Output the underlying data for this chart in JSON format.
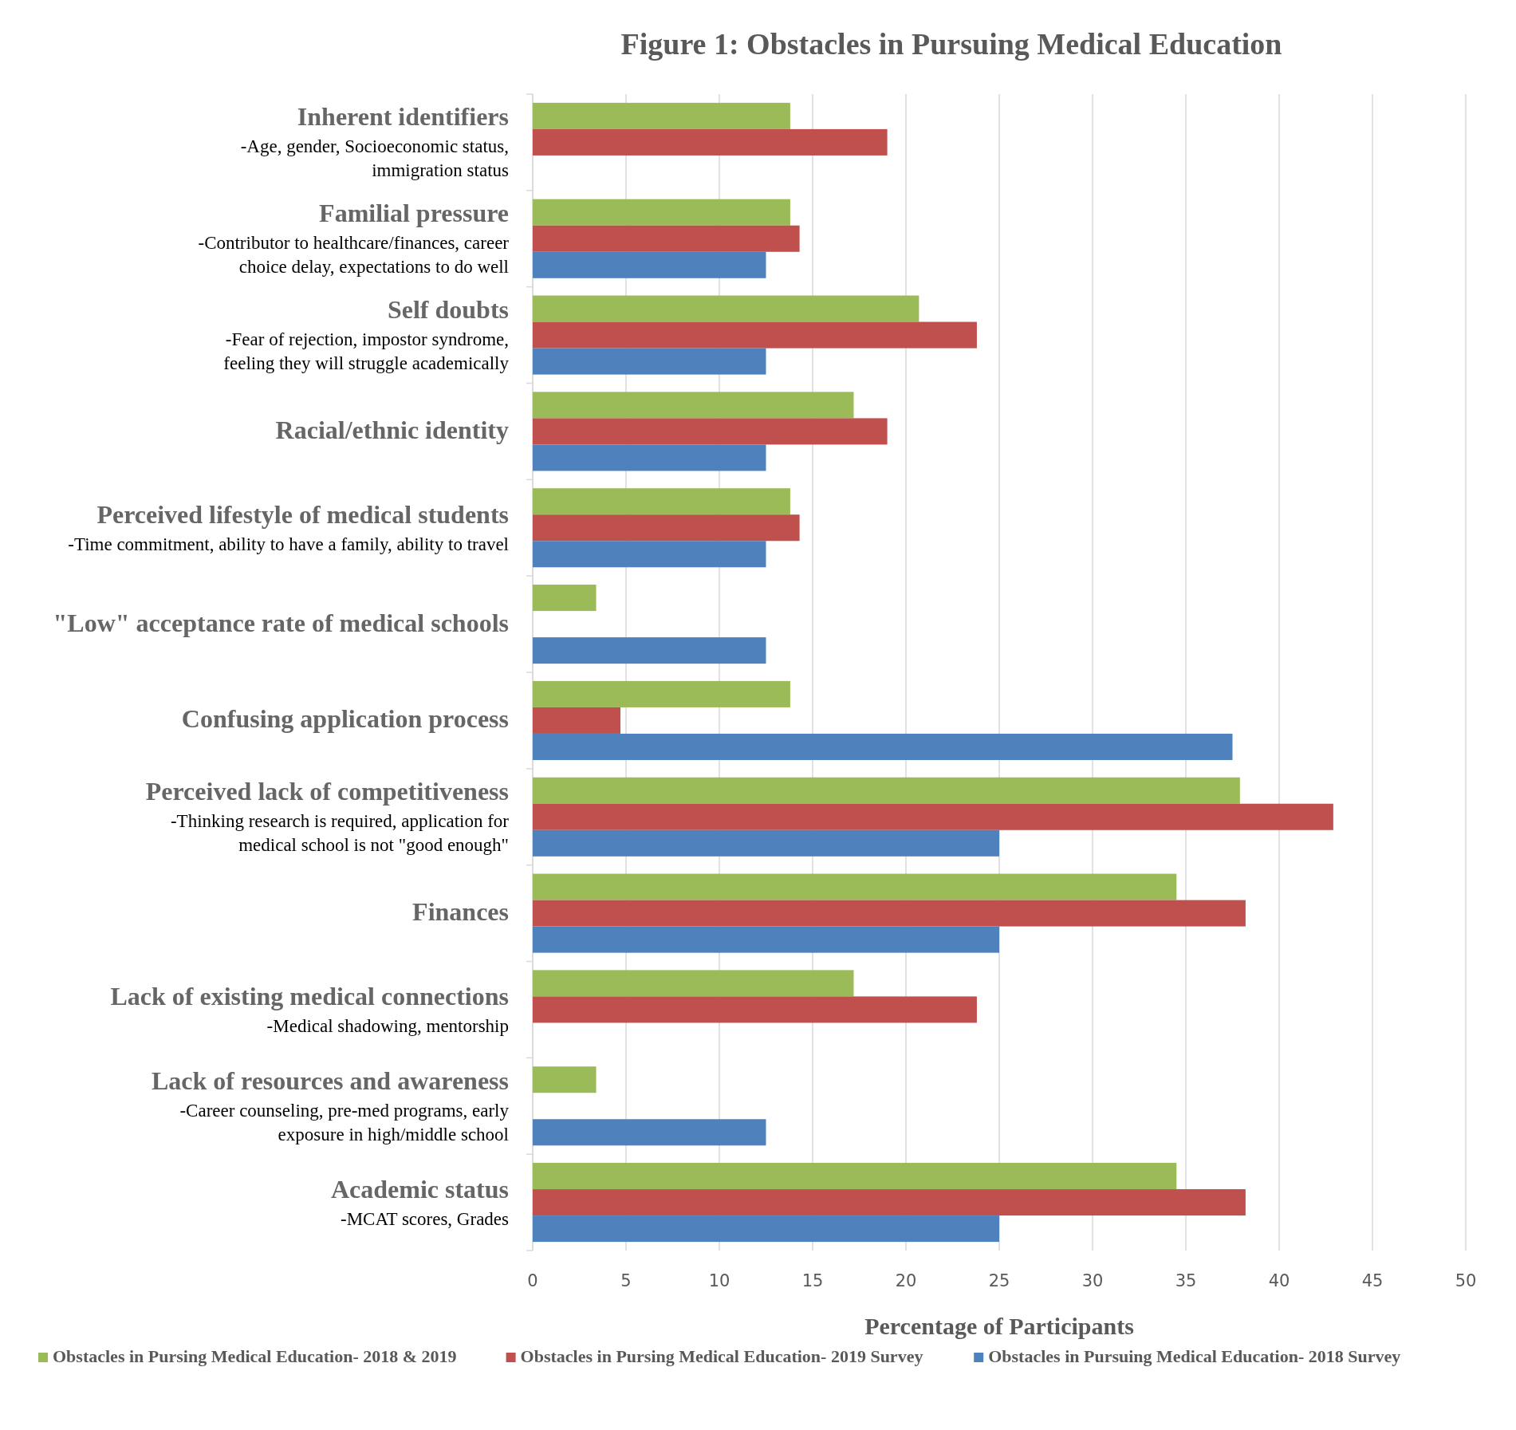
{
  "chart_data": {
    "type": "bar",
    "orientation": "horizontal",
    "title": "Figure 1: Obstacles in Pursuing Medical Education",
    "xlabel": "Percentage of Participants",
    "categories": [
      "Inherent identifiers\n-Age, gender, Socioeconomic status,\nimmigration status",
      "Familial pressure\n-Contributor to healthcare/finances, career\nchoice delay, expectations to do well",
      "Self doubts\n-Fear of rejection, impostor syndrome,\nfeeling they will struggle academically",
      "Racial/ethnic identity",
      "Perceived lifestyle of medical students\n-Time commitment, ability to have a family, ability to travel",
      "\"Low\" acceptance rate of medical schools",
      "Confusing application process",
      "Perceived lack of competitiveness\n-Thinking research is required, application for\nmedical school is not \"good enough\"",
      "Finances",
      "Lack of existing medical connections\n-Medical shadowing, mentorship",
      "Lack of resources and awareness\n-Career counseling, pre-med programs, early\nexposure in high/middle school",
      "Academic status\n-MCAT scores, Grades"
    ],
    "series": [
      {
        "name": "Obstacles in Pursing Medical Education- 2018 & 2019",
        "color": "#9bbb59",
        "values": [
          13.8,
          13.8,
          20.7,
          17.2,
          13.8,
          3.4,
          13.8,
          37.9,
          34.5,
          17.2,
          3.4,
          34.5
        ]
      },
      {
        "name": "Obstacles in Pursing Medical Education- 2019 Survey",
        "color": "#c0504d",
        "values": [
          19.0,
          14.3,
          23.8,
          19.0,
          14.3,
          null,
          4.7,
          42.9,
          38.2,
          23.8,
          null,
          38.2
        ]
      },
      {
        "name": "Obstacles in Pursuing Medical Education- 2018 Survey",
        "color": "#4f81bd",
        "values": [
          null,
          12.5,
          12.5,
          12.5,
          12.5,
          12.5,
          37.5,
          25.0,
          25.0,
          null,
          12.5,
          25.0
        ]
      }
    ],
    "xlim": [
      0,
      50
    ],
    "xticks": [
      0,
      5,
      10,
      15,
      20,
      25,
      30,
      35,
      40,
      45,
      50
    ],
    "grid": "x",
    "legend": "bottom"
  }
}
